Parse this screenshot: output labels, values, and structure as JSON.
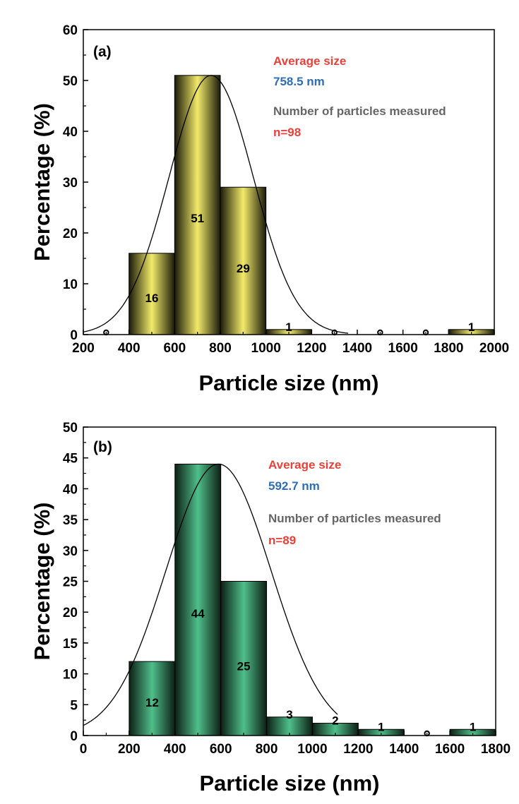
{
  "colors": {
    "bars_a_center": "#f3ea6a",
    "bars_a_edge": "#1a1a0a",
    "bars_b_center": "#4fbf8a",
    "bars_b_edge": "#0d1f15",
    "anno_red": "#e8413a",
    "anno_blue": "#2f6db5",
    "anno_gray": "#666666"
  },
  "chart_data": [
    {
      "panel": "(a)",
      "type": "bar",
      "bins": [
        [
          400,
          600
        ],
        [
          600,
          800
        ],
        [
          800,
          1000
        ],
        [
          1000,
          1200
        ],
        [
          1800,
          2000
        ]
      ],
      "values": [
        16,
        51,
        29,
        1,
        1
      ],
      "bar_labels": [
        "16",
        "51",
        "29",
        "1",
        "1"
      ],
      "zero_bin_markers": [
        300,
        1300,
        1500,
        1700
      ],
      "fit_curve": {
        "type": "gaussian",
        "mean": 760,
        "sigma": 185,
        "peak": 51,
        "x_range": [
          200,
          1360
        ]
      },
      "xlim": [
        200,
        2000
      ],
      "ylim": [
        0,
        60
      ],
      "x_ticks": [
        200,
        400,
        600,
        800,
        1000,
        1200,
        1400,
        1600,
        1800,
        2000
      ],
      "y_ticks": [
        0,
        10,
        20,
        30,
        40,
        50,
        60
      ],
      "xlabel": "Particle size (nm)",
      "ylabel": "Percentage (%)",
      "annotations": {
        "avg_label": "Average size",
        "avg_value": "758.5 nm",
        "count_label": "Number of particles measured",
        "count_value": "n=98"
      }
    },
    {
      "panel": "(b)",
      "type": "bar",
      "bins": [
        [
          200,
          400
        ],
        [
          400,
          600
        ],
        [
          600,
          800
        ],
        [
          800,
          1000
        ],
        [
          1000,
          1200
        ],
        [
          1200,
          1400
        ],
        [
          1600,
          1800
        ]
      ],
      "values": [
        12,
        44,
        25,
        3,
        2,
        1,
        1
      ],
      "bar_labels": [
        "12",
        "44",
        "25",
        "3",
        "2",
        "1",
        "1"
      ],
      "zero_bin_markers": [
        1500
      ],
      "fit_curve": {
        "type": "gaussian",
        "mean": 590,
        "sigma": 230,
        "peak": 44,
        "x_range": [
          0,
          1110
        ]
      },
      "xlim": [
        0,
        1800
      ],
      "ylim": [
        0,
        50
      ],
      "x_ticks": [
        0,
        200,
        400,
        600,
        800,
        1000,
        1200,
        1400,
        1600,
        1800
      ],
      "y_ticks": [
        0,
        5,
        10,
        15,
        20,
        25,
        30,
        35,
        40,
        45,
        50
      ],
      "xlabel": "Particle size (nm)",
      "ylabel": "Percentage (%)",
      "annotations": {
        "avg_label": "Average size",
        "avg_value": "592.7 nm",
        "count_label": "Number of particles measured",
        "count_value": "n=89"
      }
    }
  ]
}
